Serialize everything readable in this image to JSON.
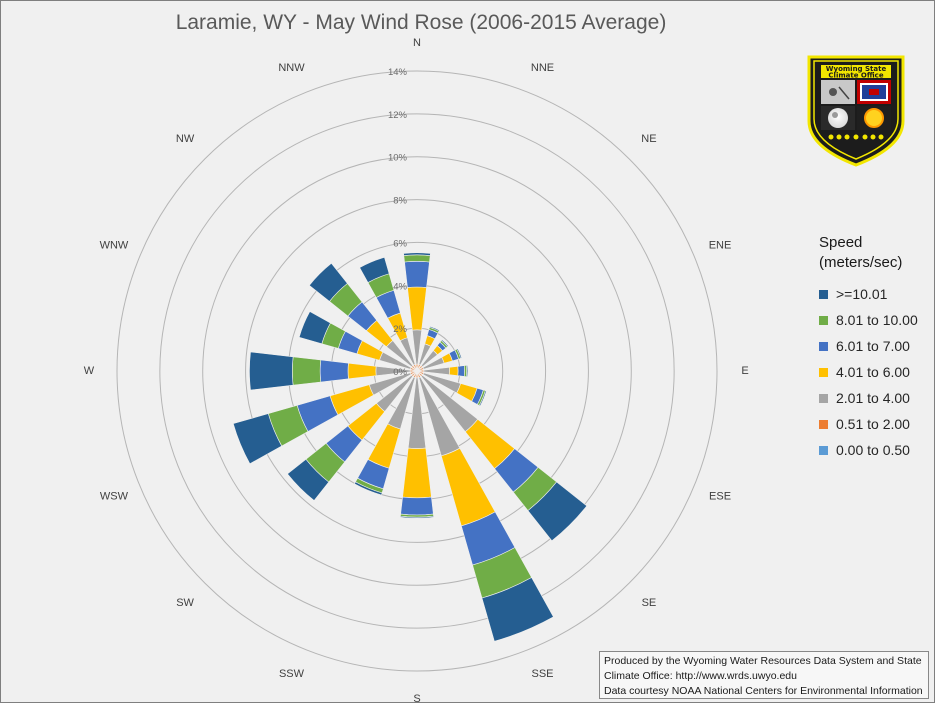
{
  "chart_data": {
    "type": "wind-rose",
    "title": "Laramie, WY - May Wind Rose (2006-2015 Average)",
    "radial_axis": {
      "min": 0,
      "max": 14,
      "step": 2,
      "tick_labels": [
        "0%",
        "2%",
        "4%",
        "6%",
        "8%",
        "10%",
        "12%",
        "14%"
      ]
    },
    "directions": [
      "N",
      "NNE",
      "NE",
      "ENE",
      "E",
      "ESE",
      "SE",
      "SSE",
      "S",
      "SSW",
      "SW",
      "WSW",
      "W",
      "WNW",
      "NW",
      "NNW"
    ],
    "legend": {
      "title_line1": "Speed",
      "title_line2": "(meters/sec)",
      "placement": "right"
    },
    "series": [
      {
        "name": "0.00 to 0.50",
        "color": "#5b9bd5",
        "values": [
          0.02,
          0.02,
          0.02,
          0.02,
          0.02,
          0.02,
          0.02,
          0.02,
          0.02,
          0.02,
          0.02,
          0.02,
          0.02,
          0.02,
          0.02,
          0.02
        ]
      },
      {
        "name": "0.51 to 2.00",
        "color": "#ed7d31",
        "values": [
          0.3,
          0.3,
          0.3,
          0.3,
          0.3,
          0.3,
          0.3,
          0.3,
          0.3,
          0.3,
          0.3,
          0.3,
          0.3,
          0.3,
          0.3,
          0.3
        ]
      },
      {
        "name": "2.01 to 4.00",
        "color": "#a5a5a5",
        "values": [
          1.6,
          1.0,
          0.9,
          1.0,
          1.2,
          1.8,
          3.3,
          3.8,
          3.3,
          2.5,
          2.1,
          2.0,
          1.6,
          1.5,
          1.5,
          1.3
        ]
      },
      {
        "name": "4.01 to 6.00",
        "color": "#ffc000",
        "values": [
          2.0,
          0.4,
          0.3,
          0.4,
          0.4,
          0.8,
          2.2,
          3.4,
          2.3,
          1.9,
          1.7,
          1.9,
          1.3,
          1.1,
          1.2,
          1.2
        ]
      },
      {
        "name": "6.01 to 7.00",
        "color": "#4472c4",
        "values": [
          1.2,
          0.3,
          0.2,
          0.3,
          0.3,
          0.3,
          1.4,
          1.9,
          0.8,
          1.0,
          1.3,
          1.6,
          1.3,
          0.9,
          1.1,
          1.1
        ]
      },
      {
        "name": "8.01 to 10.00",
        "color": "#70ad47",
        "values": [
          0.3,
          0.1,
          0.1,
          0.1,
          0.1,
          0.1,
          1.1,
          1.6,
          0.1,
          0.2,
          1.2,
          1.4,
          1.3,
          0.8,
          1.1,
          0.8
        ]
      },
      {
        "name": ">=10.01",
        "color": "#255e91",
        "values": [
          0.1,
          0.05,
          0.05,
          0.05,
          0.05,
          0.05,
          1.8,
          2.1,
          0.05,
          0.1,
          1.1,
          1.7,
          2.0,
          1.1,
          1.2,
          0.8
        ]
      }
    ]
  },
  "credit": {
    "line1": "Produced by the Wyoming Water Resources Data System and State",
    "line2": "Climate Office: http://www.wrds.uwyo.edu",
    "line3": "Data courtesy NOAA National Centers for Environmental Information"
  },
  "logo": {
    "line1": "Wyoming State",
    "line2": "Climate Office"
  }
}
